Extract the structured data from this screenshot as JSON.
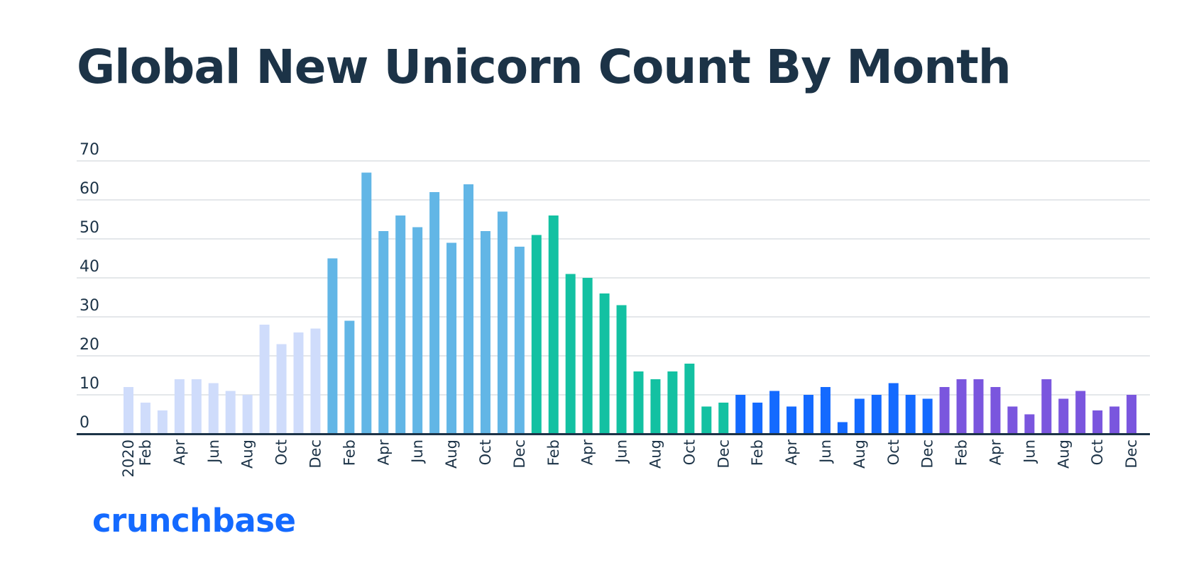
{
  "chart_data": {
    "type": "bar",
    "title": "Global New Unicorn Count By Month",
    "xlabel": "",
    "ylabel": "",
    "ylim": [
      0,
      70
    ],
    "yticks": [
      0,
      10,
      20,
      30,
      40,
      50,
      60,
      70
    ],
    "grid": true,
    "legend": "none",
    "tick_labels": [
      "2020",
      "Feb",
      "",
      "Apr",
      "",
      "Jun",
      "",
      "Aug",
      "",
      "Oct",
      "",
      "Dec",
      "",
      "Feb",
      "",
      "Apr",
      "",
      "Jun",
      "",
      "Aug",
      "",
      "Oct",
      "",
      "Dec",
      "",
      "Feb",
      "",
      "Apr",
      "",
      "Jun",
      "",
      "Aug",
      "",
      "Oct",
      "",
      "Dec",
      "",
      "Feb",
      "",
      "Apr",
      "",
      "Jun",
      "",
      "Aug",
      "",
      "Oct",
      "",
      "Dec",
      "",
      "Feb",
      "",
      "Apr",
      "",
      "Jun",
      "",
      "Aug",
      "",
      "Oct",
      "",
      "Dec"
    ],
    "values": [
      12,
      8,
      6,
      14,
      14,
      13,
      11,
      10,
      28,
      23,
      26,
      27,
      45,
      29,
      67,
      52,
      56,
      53,
      62,
      49,
      64,
      52,
      57,
      48,
      51,
      56,
      41,
      40,
      36,
      33,
      16,
      14,
      16,
      18,
      7,
      8,
      10,
      8,
      11,
      7,
      10,
      12,
      3,
      9,
      10,
      13,
      10,
      9,
      12,
      14,
      14,
      12,
      7,
      5,
      14,
      9,
      11,
      6,
      7,
      10
    ],
    "colors": [
      "#cfdcfb",
      "#62b6e6",
      "#13c1a2",
      "#146aff",
      "#7a56de"
    ]
  },
  "logo": {
    "text": "crunchbase",
    "color": "#146aff"
  }
}
